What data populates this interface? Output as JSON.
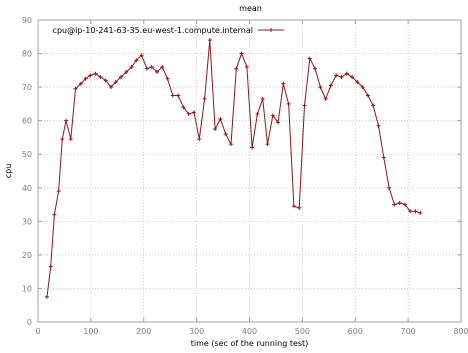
{
  "chart_data": {
    "type": "line",
    "title": "mean",
    "xlabel": "time (sec of the running test)",
    "ylabel": "cpu",
    "xlim": [
      0,
      800
    ],
    "ylim": [
      0,
      90
    ],
    "xticks": [
      0,
      100,
      200,
      300,
      400,
      500,
      600,
      700,
      800
    ],
    "yticks": [
      0,
      10,
      20,
      30,
      40,
      50,
      60,
      70,
      80,
      90
    ],
    "grid": true,
    "legend_position": "top-left",
    "series": [
      {
        "name": "cpu@ip-10-241-63-35.eu-west-1.compute.internal",
        "color": "#8b1a1a",
        "marker": "plus",
        "x": [
          17,
          24,
          31,
          39,
          46,
          53,
          62,
          71,
          81,
          90,
          99,
          109,
          118,
          128,
          138,
          147,
          157,
          167,
          177,
          186,
          196,
          206,
          215,
          225,
          235,
          245,
          255,
          265,
          275,
          285,
          295,
          305,
          315,
          325,
          335,
          345,
          355,
          365,
          375,
          385,
          395,
          405,
          415,
          425,
          434,
          444,
          454,
          464,
          474,
          484,
          494,
          504,
          514,
          524,
          534,
          544,
          554,
          564,
          574,
          584,
          594,
          604,
          614,
          624,
          634,
          644,
          654,
          664,
          674,
          684,
          694,
          704,
          714,
          723
        ],
        "y": [
          7.5,
          16.5,
          32,
          39,
          54.5,
          60,
          54.5,
          69.5,
          71,
          72.5,
          73.5,
          74,
          73,
          72,
          70,
          71.5,
          73,
          74.5,
          76,
          78,
          79.5,
          75.5,
          76,
          74.5,
          76,
          72.5,
          67.5,
          67.5,
          64,
          62,
          62.5,
          54.5,
          66.5,
          84,
          57.5,
          60.5,
          56,
          53,
          75.5,
          80,
          76,
          52,
          62,
          66.5,
          53,
          61.5,
          59.5,
          71,
          65,
          34.5,
          34,
          64.5,
          78.5,
          75.5,
          70,
          66.5,
          70.5,
          73.5,
          73,
          74,
          73,
          71.5,
          70,
          67.5,
          64.5,
          58.5,
          49,
          40,
          35,
          35.5,
          35,
          33,
          33,
          32.5
        ]
      }
    ]
  }
}
